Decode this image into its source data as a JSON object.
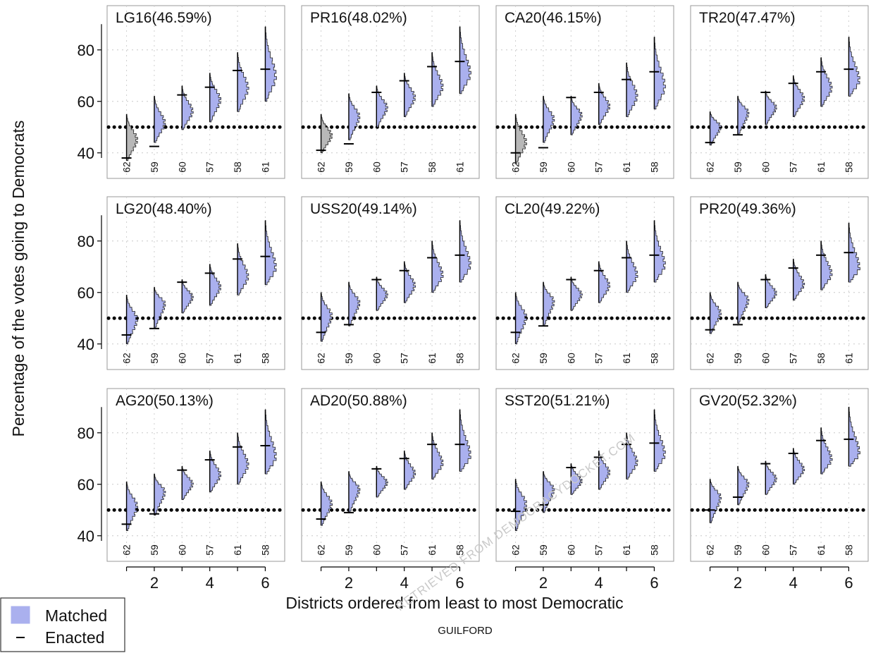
{
  "chart_data": {
    "type": "violin",
    "ylabel": "Percentage of the votes going to Democrats",
    "xlabel": "Districts ordered from least to most Democratic",
    "subtitle": "GUILFORD",
    "watermark": "RETRIEVED FROM DEMOCRACYDOCKET.COM",
    "ylim": [
      33,
      95
    ],
    "yticks": [
      40,
      60,
      80
    ],
    "xlim": [
      0.3,
      6.7
    ],
    "xticks": [
      2,
      4,
      6
    ],
    "reference_line": 50,
    "legend": {
      "matched": "Matched",
      "enacted": "Enacted",
      "placement": "bottom-left"
    },
    "colors": {
      "matched": "#aab0ee",
      "matched_edge": "#222222",
      "below_50": "#b8b8b8",
      "line": "#000000"
    },
    "panels": [
      {
        "title": "LG16(46.59%)",
        "districts": [
          "62",
          "59",
          "60",
          "57",
          "58",
          "61"
        ],
        "median": [
          45.5,
          52,
          56.5,
          61,
          65.5,
          70
        ],
        "low": [
          37,
          44,
          49,
          52,
          56,
          60
        ],
        "high": [
          55,
          62,
          66,
          71,
          79,
          89
        ],
        "enacted": [
          38,
          42.5,
          62.5,
          65.5,
          72,
          72.5
        ]
      },
      {
        "title": "PR16(48.02%)",
        "districts": [
          "62",
          "59",
          "60",
          "57",
          "58",
          "61"
        ],
        "median": [
          47,
          54.5,
          58,
          62,
          66,
          71
        ],
        "low": [
          40,
          45,
          50,
          54,
          58,
          63
        ],
        "high": [
          55,
          63,
          66,
          71,
          79,
          89
        ],
        "enacted": [
          41,
          43.5,
          63.5,
          68,
          73.5,
          75.5
        ]
      },
      {
        "title": "CA20(46.15%)",
        "districts": [
          "62",
          "59",
          "60",
          "57",
          "61",
          "58"
        ],
        "median": [
          44.5,
          53.5,
          55,
          58.5,
          62.5,
          66
        ],
        "low": [
          36,
          44,
          47,
          51,
          54,
          57
        ],
        "high": [
          55,
          62,
          62,
          67,
          75,
          85
        ],
        "enacted": [
          40,
          42,
          61.5,
          63.5,
          68.5,
          71.5
        ]
      },
      {
        "title": "TR20(47.47%)",
        "districts": [
          "62",
          "59",
          "60",
          "57",
          "61",
          "58"
        ],
        "median": [
          50.5,
          56,
          58,
          61.5,
          65.5,
          68.5
        ],
        "low": [
          43,
          47,
          51,
          54,
          58,
          62
        ],
        "high": [
          56,
          62,
          64,
          70,
          77,
          85
        ],
        "enacted": [
          44,
          47,
          63.5,
          67,
          71.5,
          72.5
        ]
      },
      {
        "title": "LG20(48.40%)",
        "districts": [
          "62",
          "59",
          "60",
          "57",
          "61",
          "58"
        ],
        "median": [
          50,
          56,
          58.5,
          62.5,
          66.5,
          70
        ],
        "low": [
          40,
          46,
          52,
          55,
          59,
          63
        ],
        "high": [
          59,
          62,
          65,
          71,
          79,
          88
        ],
        "enacted": [
          43.5,
          46,
          64,
          67.5,
          73,
          74
        ]
      },
      {
        "title": "USS20(49.14%)",
        "districts": [
          "62",
          "59",
          "60",
          "57",
          "61",
          "58"
        ],
        "median": [
          51.5,
          56.5,
          59.5,
          63,
          67,
          71
        ],
        "low": [
          41,
          47,
          53,
          56,
          60,
          64
        ],
        "high": [
          60,
          64,
          66,
          72,
          80,
          88
        ],
        "enacted": [
          44.5,
          47.5,
          65,
          68.5,
          73.5,
          74.5
        ]
      },
      {
        "title": "CL20(49.22%)",
        "districts": [
          "62",
          "59",
          "60",
          "57",
          "61",
          "58"
        ],
        "median": [
          51,
          57,
          59.5,
          63,
          67,
          71
        ],
        "low": [
          40,
          47,
          53,
          56,
          60,
          64
        ],
        "high": [
          60,
          64,
          66,
          72,
          80,
          88
        ],
        "enacted": [
          44.5,
          47,
          65,
          68.5,
          73.5,
          74.5
        ]
      },
      {
        "title": "PR20(49.36%)",
        "districts": [
          "62",
          "59",
          "60",
          "57",
          "58",
          "61"
        ],
        "median": [
          52.5,
          57.5,
          60,
          63.5,
          67.5,
          70
        ],
        "low": [
          44,
          48,
          54,
          57,
          61,
          64
        ],
        "high": [
          60,
          64,
          67,
          73,
          80,
          87
        ],
        "enacted": [
          45.5,
          47.5,
          65,
          69.5,
          74.5,
          75.5
        ]
      },
      {
        "title": "AG20(50.13%)",
        "districts": [
          "62",
          "59",
          "60",
          "57",
          "61",
          "58"
        ],
        "median": [
          52,
          57.5,
          60.5,
          64,
          68,
          71
        ],
        "low": [
          42,
          48,
          54,
          57,
          60,
          64
        ],
        "high": [
          61,
          64,
          67,
          73,
          80,
          89
        ],
        "enacted": [
          44.5,
          48.5,
          65.5,
          69.5,
          74.5,
          75
        ]
      },
      {
        "title": "AD20(50.88%)",
        "districts": [
          "62",
          "59",
          "60",
          "57",
          "61",
          "58"
        ],
        "median": [
          53,
          58.5,
          61,
          64.5,
          68.5,
          71.5
        ],
        "low": [
          44,
          49,
          55,
          58,
          62,
          65
        ],
        "high": [
          61,
          65,
          67,
          73,
          80,
          89
        ],
        "enacted": [
          46.5,
          49,
          66,
          70,
          75.5,
          75.5
        ]
      },
      {
        "title": "SST20(51.21%)",
        "districts": [
          "62",
          "59",
          "60",
          "57",
          "61",
          "58"
        ],
        "median": [
          53,
          58.5,
          61.5,
          65,
          69,
          72
        ],
        "low": [
          42,
          49,
          56,
          58,
          62,
          65
        ],
        "high": [
          62,
          65,
          68,
          73,
          80,
          89
        ],
        "enacted": [
          49.5,
          52,
          66.5,
          70.5,
          75.5,
          76
        ]
      },
      {
        "title": "GV20(52.32%)",
        "districts": [
          "62",
          "59",
          "60",
          "57",
          "61",
          "58"
        ],
        "median": [
          55.5,
          60.5,
          62.5,
          66,
          70,
          72.5
        ],
        "low": [
          45,
          52,
          56,
          60,
          64,
          67
        ],
        "high": [
          62,
          67,
          69,
          74,
          82,
          90
        ],
        "enacted": [
          50,
          55,
          68,
          72,
          77,
          77.5
        ]
      }
    ]
  }
}
